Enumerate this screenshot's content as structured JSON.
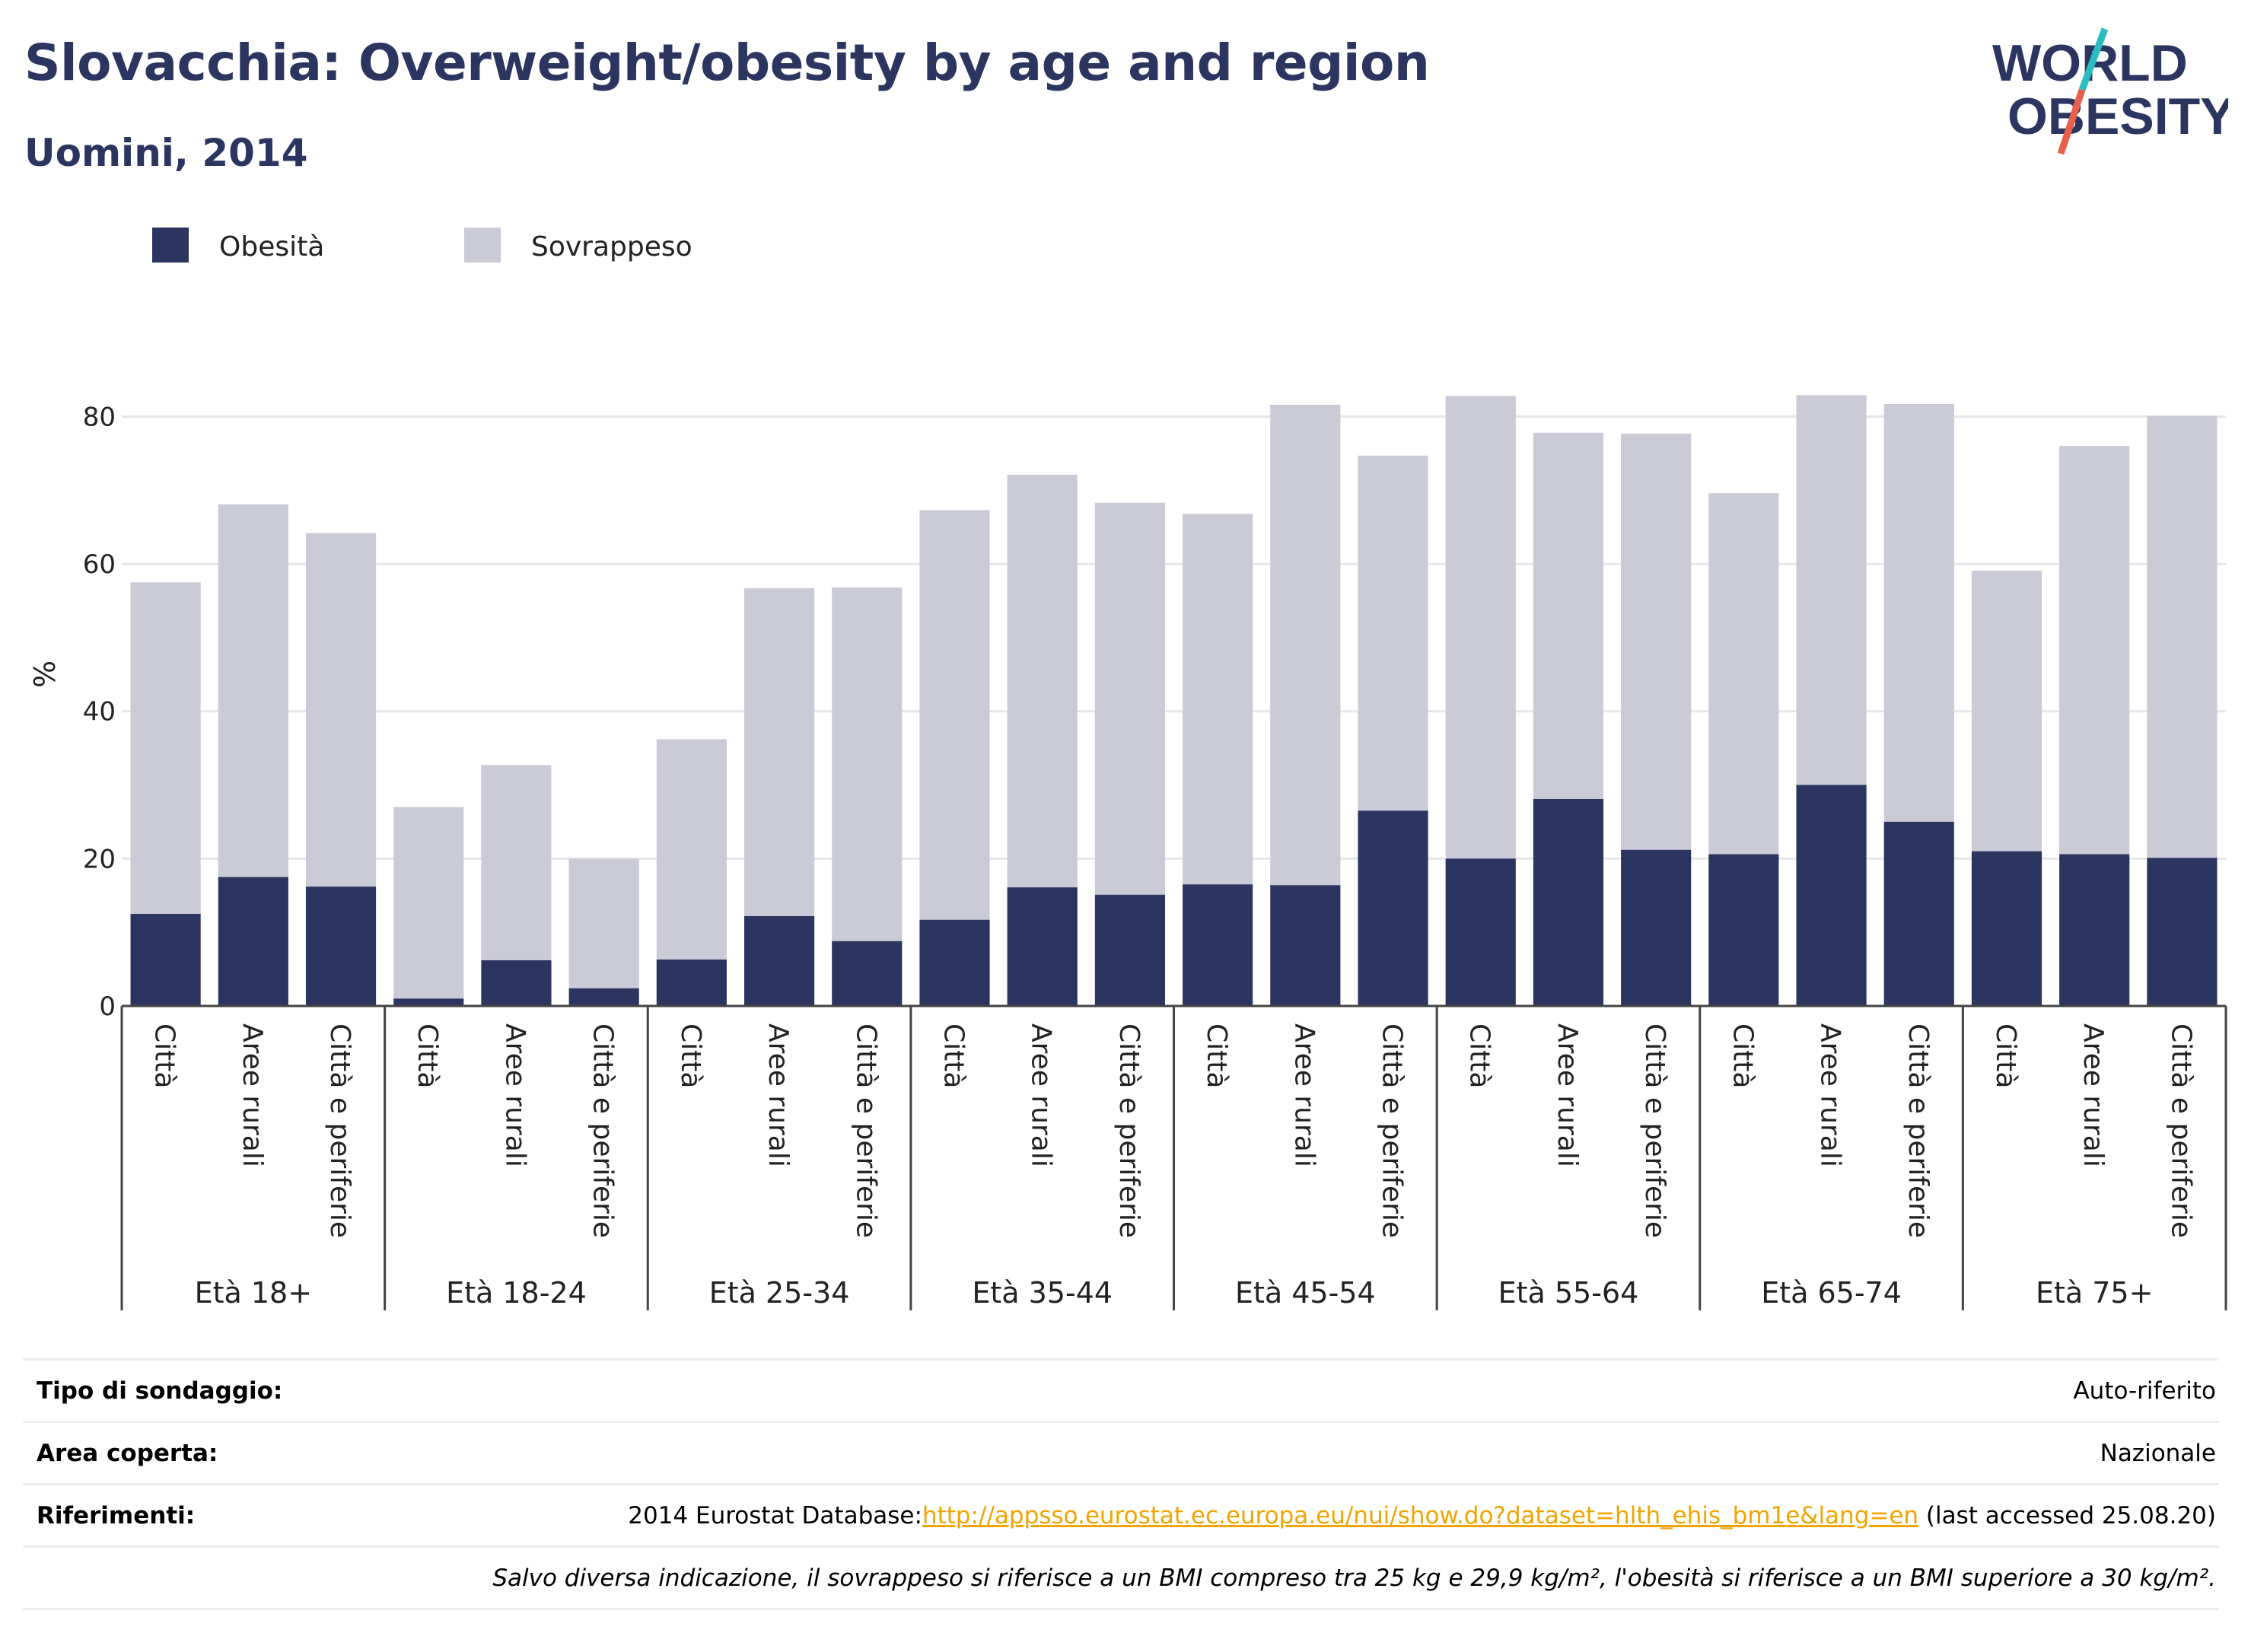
{
  "header": {
    "title": "Slovacchia: Overweight/obesity by age and region",
    "subtitle": "Uomini, 2014"
  },
  "logo": {
    "line1": "WORLD",
    "line2": "OBESITY",
    "colors": {
      "text": "#2b3560",
      "slash_top": "#2bbcc0",
      "slash_bottom": "#e8604c"
    }
  },
  "colors": {
    "obesity": "#2b3560",
    "overweight": "#cacbd7",
    "grid": "#e6e7ec",
    "axis": "#444444"
  },
  "chart_data": {
    "type": "bar",
    "stacked": true,
    "ylabel": "%",
    "ylim": [
      0,
      88
    ],
    "yticks": [
      0,
      20,
      40,
      60,
      80
    ],
    "grid": true,
    "legend_position": "top-left",
    "series": [
      {
        "name": "Obesità",
        "color": "#2b3560",
        "values": [
          12.5,
          17.5,
          16.2,
          1.0,
          6.2,
          2.4,
          6.3,
          12.2,
          8.8,
          11.7,
          16.1,
          15.1,
          16.5,
          16.4,
          26.5,
          20.0,
          28.1,
          21.2,
          20.6,
          30.0,
          25.0,
          21.0,
          20.6,
          20.1
        ]
      },
      {
        "name": "Sovrappeso",
        "color": "#cacbd7",
        "values": [
          45.0,
          50.6,
          48.0,
          26.0,
          26.5,
          17.6,
          29.9,
          44.5,
          48.0,
          55.6,
          56.0,
          53.2,
          50.3,
          65.2,
          48.2,
          62.8,
          49.7,
          56.5,
          49.0,
          52.9,
          56.7,
          38.1,
          55.4,
          60.0
        ]
      }
    ],
    "categories": [
      "Città",
      "Aree rurali",
      "Città e periferie",
      "Città",
      "Aree rurali",
      "Città e periferie",
      "Città",
      "Aree rurali",
      "Città e periferie",
      "Città",
      "Aree rurali",
      "Città e periferie",
      "Città",
      "Aree rurali",
      "Città e periferie",
      "Città",
      "Aree rurali",
      "Città e periferie",
      "Città",
      "Aree rurali",
      "Città e periferie",
      "Città",
      "Aree rurali",
      "Città e periferie"
    ],
    "groups": [
      "Età 18+",
      "Età 18-24",
      "Età 25-34",
      "Età 35-44",
      "Età 45-54",
      "Età 55-64",
      "Età 65-74",
      "Età 75+"
    ]
  },
  "info": {
    "survey_type_label": "Tipo di sondaggio:",
    "survey_type_value": "Auto-riferito",
    "area_label": "Area coperta:",
    "area_value": "Nazionale",
    "references_label": "Riferimenti:",
    "references_prefix": "2014 Eurostat Database:",
    "references_link": "http://appsso.eurostat.ec.europa.eu/nui/show.do?dataset=hlth_ehis_bm1e&lang=en",
    "references_suffix": " (last accessed 25.08.20)",
    "note": "Salvo diversa indicazione, il sovrappeso si riferisce a un BMI compreso tra 25 kg e 29,9 kg/m², l'obesità si riferisce a un BMI superiore a 30 kg/m²."
  }
}
